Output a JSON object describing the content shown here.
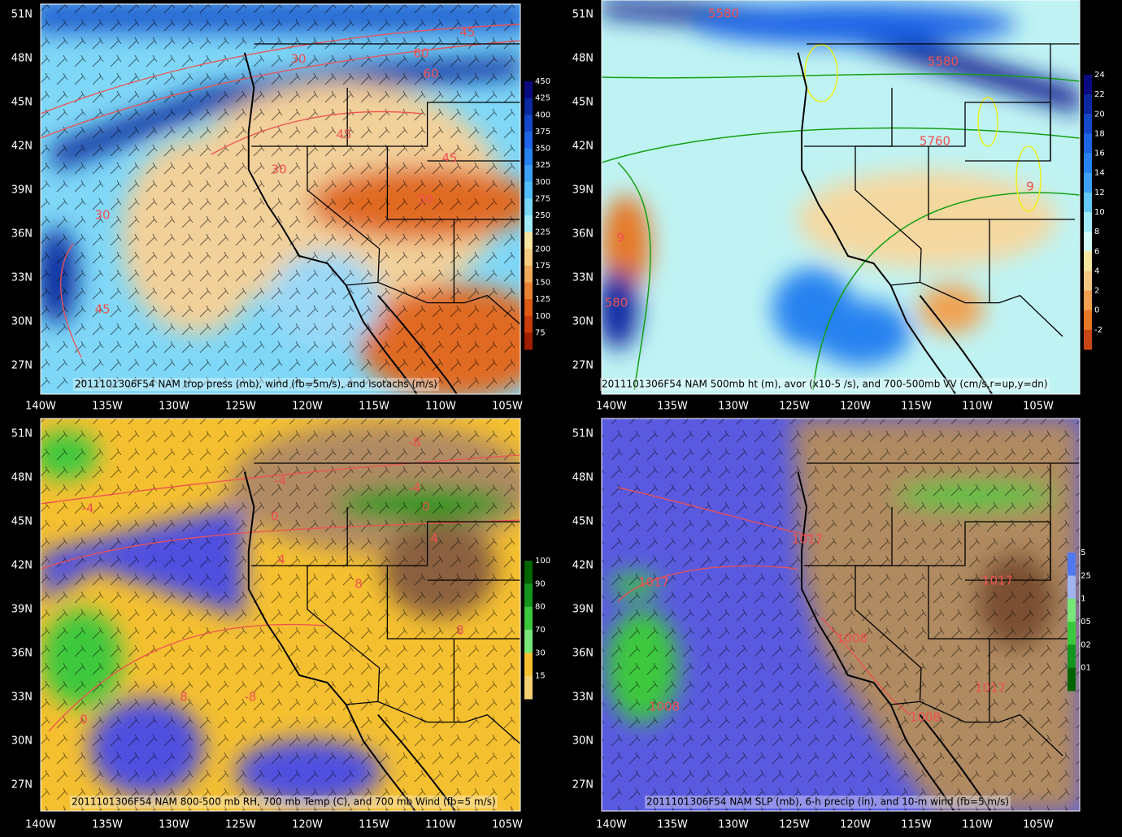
{
  "panels": [
    {
      "caption": "2011101306F54 NAM trop press (mb), wind (fb=5m/s), and isotachs (m/s)",
      "lat_labels": [
        "51N",
        "48N",
        "45N",
        "42N",
        "39N",
        "36N",
        "33N",
        "30N",
        "27N"
      ],
      "lon_labels": [
        "140W",
        "135W",
        "130W",
        "125W",
        "120W",
        "115W",
        "110W",
        "105W"
      ],
      "colorbar": {
        "labels": [
          "450",
          "425",
          "400",
          "375",
          "350",
          "325",
          "300",
          "275",
          "250",
          "225",
          "200",
          "175",
          "150",
          "125",
          "100",
          "75"
        ],
        "colors": [
          "#0a0a80",
          "#0a28a0",
          "#1448c8",
          "#1e64e6",
          "#2882f0",
          "#3ca0f5",
          "#50bef7",
          "#78d7f7",
          "#a0ebf7",
          "#f7e6a0",
          "#f5cc82",
          "#f0aa5a",
          "#e68232",
          "#dc5a14",
          "#c83c0a",
          "#a01e00"
        ]
      },
      "contour_labels": [
        "45",
        "30",
        "60",
        "60",
        "45",
        "30",
        "45",
        "30",
        "30",
        "45"
      ]
    },
    {
      "caption": "2011101306F54 NAM 500mb ht (m), avor (x10-5 /s), and 700-500mb VV (cm/s,r=up,y=dn)",
      "lat_labels": [
        "51N",
        "48N",
        "45N",
        "42N",
        "39N",
        "36N",
        "33N",
        "30N",
        "27N"
      ],
      "lon_labels": [
        "140W",
        "135W",
        "130W",
        "125W",
        "120W",
        "115W",
        "110W",
        "105W"
      ],
      "colorbar": {
        "labels": [
          "24",
          "22",
          "20",
          "18",
          "16",
          "14",
          "12",
          "10",
          "8",
          "6",
          "4",
          "2",
          "0",
          "-2"
        ],
        "colors": [
          "#0a0a80",
          "#0a28a0",
          "#1448c8",
          "#1e64e6",
          "#2882f0",
          "#3ca0f5",
          "#64c8f7",
          "#a0ebf7",
          "#d2faf7",
          "#f7e6a0",
          "#f5c882",
          "#f0a050",
          "#e67828",
          "#c84614"
        ]
      },
      "contour_labels": [
        "5580",
        "5580",
        "5760",
        "9",
        "9",
        "580"
      ]
    },
    {
      "caption": "2011101306F54 NAM 800-500 mb RH, 700 mb Temp (C), and 700 mb Wind (fb=5 m/s)",
      "lat_labels": [
        "51N",
        "48N",
        "45N",
        "42N",
        "39N",
        "36N",
        "33N",
        "30N",
        "27N"
      ],
      "lon_labels": [
        "140W",
        "135W",
        "130W",
        "125W",
        "120W",
        "115W",
        "110W",
        "105W"
      ],
      "colorbar": {
        "labels": [
          "100",
          "90",
          "80",
          "70",
          "30",
          "15"
        ],
        "colors": [
          "#006400",
          "#14961e",
          "#3cc83c",
          "#78e678",
          "#f5c030",
          "#f5d070"
        ]
      },
      "contour_labels": [
        "-8",
        "-4",
        "-4",
        "-4",
        "0",
        "0",
        "4",
        "4",
        "8",
        "8",
        "8",
        "-8",
        "0"
      ]
    },
    {
      "caption": "2011101306F54 NAM SLP (mb), 6-h precip (in), and 10-m wind (fb=5 m/s)",
      "lat_labels": [
        "51N",
        "48N",
        "45N",
        "42N",
        "39N",
        "36N",
        "33N",
        "30N",
        "27N"
      ],
      "lon_labels": [
        "140W",
        "135W",
        "130W",
        "125W",
        "120W",
        "115W",
        "110W",
        "105W"
      ],
      "colorbar": {
        "labels": [
          ".5",
          ".25",
          ".1",
          ".05",
          ".02",
          ".01"
        ],
        "colors": [
          "#5078f0",
          "#a0b4f0",
          "#78e678",
          "#3cc83c",
          "#14961e",
          "#006400"
        ]
      },
      "contour_labels": [
        "1017",
        "1017",
        "1008",
        "1008",
        "1008",
        "1017",
        "1017"
      ]
    }
  ]
}
